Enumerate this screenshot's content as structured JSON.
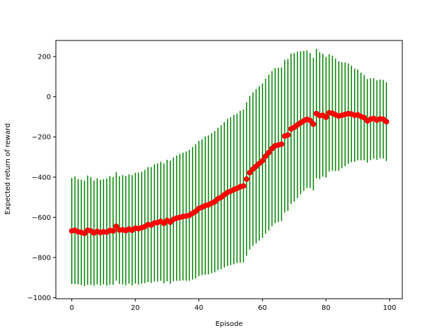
{
  "chart_data": {
    "type": "scatter",
    "title": "",
    "xlabel": "Episode",
    "ylabel": "Expected return of reward",
    "xlim": [
      -5,
      104
    ],
    "ylim": [
      -1005,
      280
    ],
    "xticks": [
      0,
      20,
      40,
      60,
      80,
      100
    ],
    "yticks": [
      -1000,
      -800,
      -600,
      -400,
      -200,
      0,
      200
    ],
    "grid": false,
    "colors": {
      "points": "#ff0000",
      "error_bars": "#008000",
      "axes": "#000000",
      "background": "#ffffff"
    },
    "series": [
      {
        "x": [
          0,
          1,
          2,
          3,
          4,
          5,
          6,
          7,
          8,
          9,
          10,
          11,
          12,
          13,
          14,
          15,
          16,
          17,
          18,
          19,
          20,
          21,
          22,
          23,
          24,
          25,
          26,
          27,
          28,
          29,
          30,
          31,
          32,
          33,
          34,
          35,
          36,
          37,
          38,
          39,
          40,
          41,
          42,
          43,
          44,
          45,
          46,
          47,
          48,
          49,
          50,
          51,
          52,
          53,
          54,
          55,
          56,
          57,
          58,
          59,
          60,
          61,
          62,
          63,
          64,
          65,
          66,
          67,
          68,
          69,
          70,
          71,
          72,
          73,
          74,
          75,
          76,
          77,
          78,
          79,
          80,
          81,
          82,
          83,
          84,
          85,
          86,
          87,
          88,
          89,
          90,
          91,
          92,
          93,
          94,
          95,
          96,
          97,
          98,
          99
        ],
        "y": [
          -668,
          -664,
          -672,
          -675,
          -680,
          -664,
          -668,
          -678,
          -670,
          -676,
          -672,
          -674,
          -665,
          -668,
          -645,
          -663,
          -662,
          -666,
          -658,
          -664,
          -654,
          -656,
          -652,
          -646,
          -636,
          -638,
          -628,
          -626,
          -620,
          -630,
          -616,
          -624,
          -610,
          -604,
          -600,
          -596,
          -594,
          -590,
          -580,
          -570,
          -556,
          -550,
          -542,
          -538,
          -530,
          -522,
          -508,
          -500,
          -488,
          -476,
          -470,
          -462,
          -456,
          -448,
          -444,
          -410,
          -378,
          -360,
          -346,
          -332,
          -318,
          -296,
          -278,
          -258,
          -244,
          -240,
          -236,
          -196,
          -190,
          -160,
          -152,
          -140,
          -130,
          -120,
          -112,
          -118,
          -136,
          -84,
          -94,
          -92,
          -102,
          -80,
          -82,
          -90,
          -96,
          -92,
          -88,
          -84,
          -86,
          -92,
          -90,
          -98,
          -104,
          -120,
          -112,
          -108,
          -116,
          -110,
          -112,
          -124
        ],
        "error": [
          264,
          268,
          262,
          262,
          262,
          272,
          268,
          262,
          264,
          262,
          262,
          266,
          270,
          268,
          270,
          268,
          272,
          272,
          272,
          274,
          276,
          278,
          278,
          282,
          286,
          288,
          292,
          294,
          296,
          298,
          302,
          306,
          308,
          312,
          316,
          318,
          322,
          326,
          330,
          334,
          336,
          338,
          344,
          346,
          348,
          352,
          354,
          358,
          362,
          366,
          368,
          372,
          372,
          378,
          380,
          382,
          382,
          382,
          384,
          384,
          384,
          386,
          388,
          386,
          386,
          384,
          382,
          380,
          378,
          374,
          370,
          364,
          356,
          348,
          342,
          336,
          330,
          322,
          316,
          306,
          300,
          292,
          286,
          280,
          272,
          264,
          258,
          250,
          240,
          232,
          226,
          218,
          212,
          208,
          204,
          200,
          198,
          196,
          196,
          196
        ]
      }
    ]
  }
}
